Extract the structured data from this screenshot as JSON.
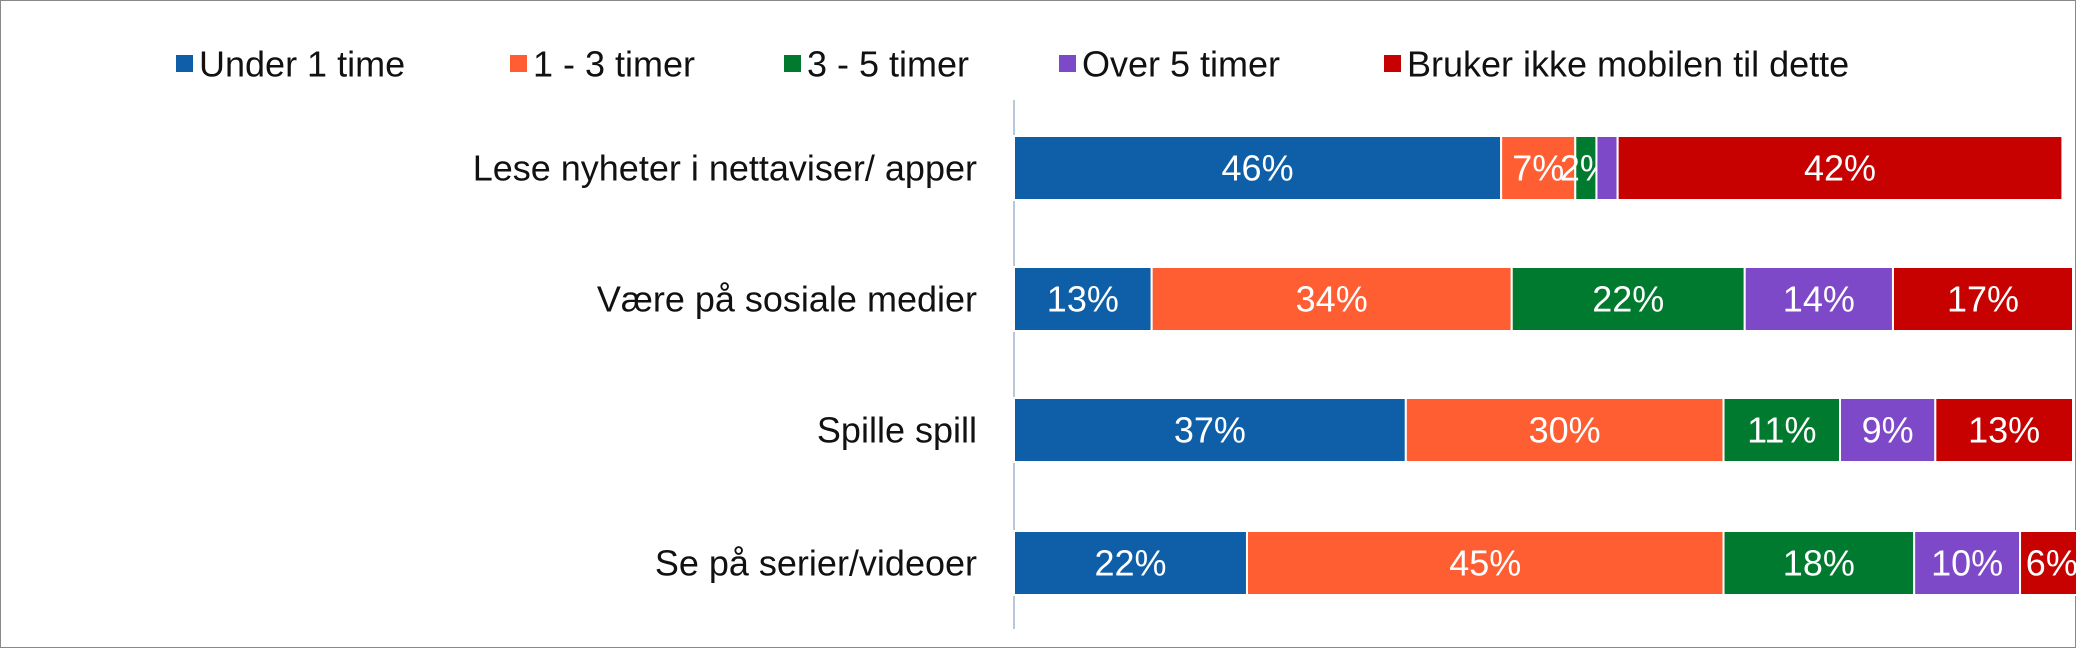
{
  "chart_data": {
    "type": "stacked-bar-horizontal",
    "categories": [
      "Lese nyheter i nettaviser/ apper",
      "Være på sosiale medier",
      "Spille spill",
      "Se på serier/videoer"
    ],
    "series": [
      {
        "name": "Under 1 time",
        "color": "#0e5fa8",
        "values": [
          46,
          13,
          37,
          22
        ],
        "value_labels": [
          "46%",
          "13%",
          "37%",
          "22%"
        ]
      },
      {
        "name": "1 - 3 timer",
        "color": "#ff5e33",
        "values": [
          7,
          34,
          30,
          45
        ],
        "value_labels": [
          "7%",
          "34%",
          "30%",
          "45%"
        ]
      },
      {
        "name": "3 - 5 timer",
        "color": "#007a2e",
        "values": [
          2,
          22,
          11,
          18
        ],
        "value_labels": [
          "2%",
          "22%",
          "11%",
          "18%"
        ]
      },
      {
        "name": "Over 5 timer",
        "color": "#7e49c9",
        "values": [
          2,
          14,
          9,
          10
        ],
        "value_labels": [
          null,
          "14%",
          "9%",
          "10%"
        ]
      },
      {
        "name": "Bruker ikke mobilen til dette",
        "color": "#c70000",
        "values": [
          42,
          17,
          13,
          6
        ],
        "value_labels": [
          "42%",
          "17%",
          "13%",
          "6%"
        ]
      }
    ],
    "xlim": [
      0,
      100
    ],
    "legend": "top"
  }
}
